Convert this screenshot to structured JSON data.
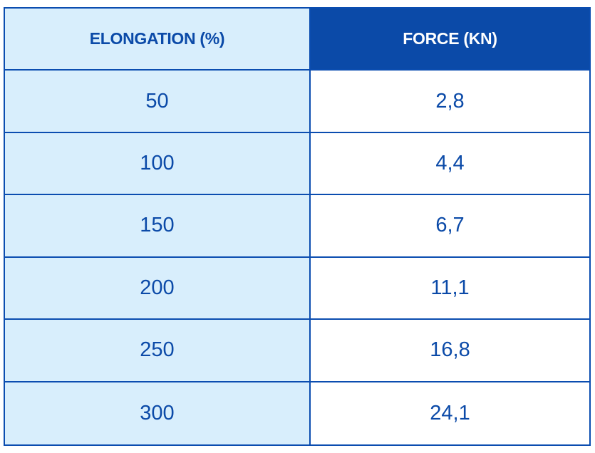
{
  "colors": {
    "border": "#0b4db0",
    "header_dark_bg": "#0b4aa8",
    "light_bg": "#d8eefc",
    "text": "#0b4aa8"
  },
  "chart_data": {
    "type": "table",
    "columns": [
      "ELONGATION (%)",
      "FORCE (KN)"
    ],
    "rows": [
      [
        "50",
        "2,8"
      ],
      [
        "100",
        "4,4"
      ],
      [
        "150",
        "6,7"
      ],
      [
        "200",
        "11,1"
      ],
      [
        "250",
        "16,8"
      ],
      [
        "300",
        "24,1"
      ]
    ]
  }
}
